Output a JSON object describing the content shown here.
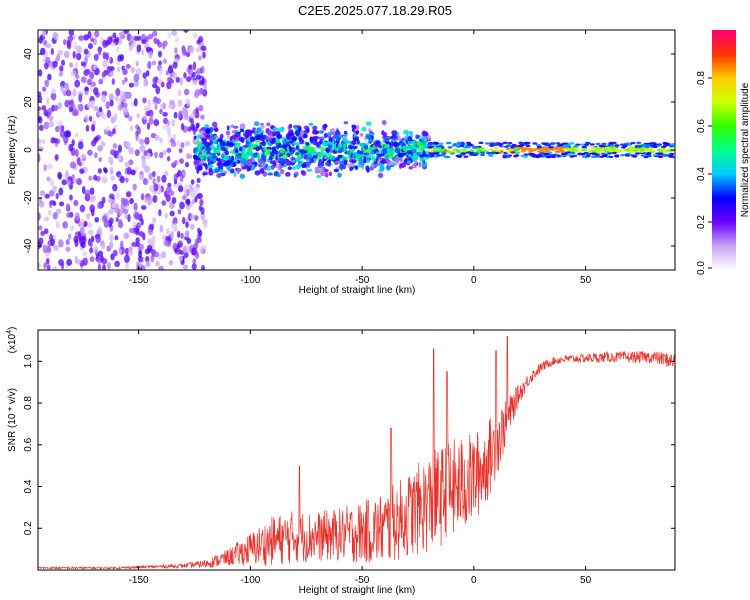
{
  "title": "C2E5.2025.077.18.29.R05",
  "chart_data": [
    {
      "type": "heatmap",
      "title": "C2E5.2025.077.18.29.R05",
      "xlabel": "Height of straight line (km)",
      "ylabel": "Frequency (Hz)",
      "xlim": [
        -195,
        90
      ],
      "ylim": [
        -50,
        50
      ],
      "xticks": [
        -150,
        -100,
        -50,
        0,
        50
      ],
      "yticks": [
        -40,
        -20,
        0,
        20,
        40
      ],
      "description_regions": [
        {
          "x_range": [
            -195,
            -120
          ],
          "freq_range": [
            -50,
            50
          ],
          "amplitude_range": [
            0.05,
            0.25
          ],
          "note": "broadband noise"
        },
        {
          "x_range": [
            -125,
            -20
          ],
          "freq_range": [
            -12,
            12
          ],
          "amplitude_range": [
            0.1,
            0.45
          ],
          "note": "spread signal"
        },
        {
          "x_range": [
            -20,
            90
          ],
          "freq_range": [
            -3,
            3
          ],
          "amplitude_range": [
            0.3,
            1.0
          ],
          "note": "narrow carrier line"
        }
      ],
      "colorbar": {
        "label": "Normalized spectral amplitude",
        "range": [
          0.0,
          1.0
        ],
        "ticks": [
          "0.0",
          "0.2",
          "0.4",
          "0.6",
          "0.8"
        ],
        "tick_values": [
          0.0,
          0.2,
          0.4,
          0.6,
          0.8
        ]
      }
    },
    {
      "type": "line",
      "xlabel": "Height of straight line (km)",
      "ylabel": "SNR (10 * v/v)",
      "multiplier_label": "(x10",
      "multiplier_exp": "4",
      "xlim": [
        -195,
        90
      ],
      "ylim": [
        0,
        1.15
      ],
      "xticks": [
        -150,
        -100,
        -50,
        0,
        50
      ],
      "yticks": [
        0.2,
        0.4,
        0.6,
        0.8,
        1.0
      ],
      "ytick_labels": [
        "0.2",
        "0.4",
        "0.6",
        "0.8",
        "1.0"
      ],
      "series": [
        {
          "name": "SNR",
          "color": "#e8312a",
          "x": [
            -195,
            -160,
            -130,
            -120,
            -110,
            -100,
            -90,
            -80,
            -70,
            -60,
            -50,
            -40,
            -30,
            -20,
            -10,
            0,
            5,
            10,
            15,
            20,
            25,
            30,
            35,
            40,
            60,
            80,
            90
          ],
          "mean": [
            0.01,
            0.01,
            0.02,
            0.03,
            0.06,
            0.1,
            0.14,
            0.16,
            0.16,
            0.17,
            0.18,
            0.2,
            0.26,
            0.32,
            0.38,
            0.44,
            0.5,
            0.6,
            0.72,
            0.84,
            0.92,
            0.97,
            1.0,
            1.01,
            1.02,
            1.02,
            1.0
          ],
          "spread": [
            0.005,
            0.005,
            0.01,
            0.02,
            0.04,
            0.08,
            0.12,
            0.13,
            0.12,
            0.13,
            0.15,
            0.18,
            0.2,
            0.24,
            0.25,
            0.22,
            0.2,
            0.17,
            0.1,
            0.05,
            0.03,
            0.025,
            0.02,
            0.02,
            0.025,
            0.03,
            0.04
          ],
          "peaks": [
            {
              "x": -18,
              "y": 1.06
            },
            {
              "x": -12,
              "y": 0.95
            },
            {
              "x": 10,
              "y": 1.05
            },
            {
              "x": 15,
              "y": 1.12
            },
            {
              "x": -37,
              "y": 0.68
            },
            {
              "x": -78,
              "y": 0.5
            }
          ]
        }
      ]
    }
  ]
}
